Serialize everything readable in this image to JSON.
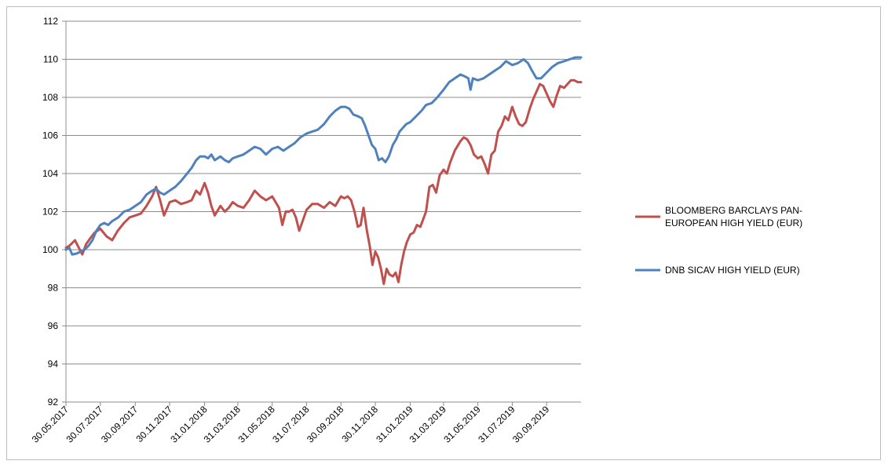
{
  "chart_data": {
    "type": "line",
    "title": "",
    "xlabel": "",
    "ylabel": "",
    "ylim": [
      92,
      112
    ],
    "y_ticks": [
      92,
      94,
      96,
      98,
      100,
      102,
      104,
      106,
      108,
      110,
      112
    ],
    "grid": true,
    "legend_position": "right",
    "x_tick_labels": [
      "30.05.2017",
      "30.07.2017",
      "30.09.2017",
      "30.11.2017",
      "31.01.2018",
      "31.03.2018",
      "31.05.2018",
      "31.07.2018",
      "30.09.2018",
      "30.11.2018",
      "31.01.2019",
      "31.03.2019",
      "31.05.2019",
      "31.07.2019",
      "30.09.2019"
    ],
    "x_tick_dates": [
      "2017-05-30",
      "2017-07-30",
      "2017-09-30",
      "2017-11-30",
      "2018-01-31",
      "2018-03-31",
      "2018-05-31",
      "2018-07-31",
      "2018-09-30",
      "2018-11-30",
      "2019-01-31",
      "2019-03-31",
      "2019-05-31",
      "2019-07-31",
      "2019-09-30"
    ],
    "x_range": [
      "2017-05-30",
      "2019-11-30"
    ],
    "series": [
      {
        "name": "BLOOMBERG BARCLAYS PAN-\nEUROPEAN HIGH YIELD (EUR)",
        "color": "#c0504d",
        "points": [
          [
            "2017-05-30",
            100.1
          ],
          [
            "2017-06-05",
            100.2
          ],
          [
            "2017-06-10",
            100.35
          ],
          [
            "2017-06-15",
            100.5
          ],
          [
            "2017-06-20",
            100.2
          ],
          [
            "2017-06-28",
            99.75
          ],
          [
            "2017-07-05",
            100.3
          ],
          [
            "2017-07-12",
            100.6
          ],
          [
            "2017-07-20",
            100.9
          ],
          [
            "2017-07-30",
            101.1
          ],
          [
            "2017-08-10",
            100.7
          ],
          [
            "2017-08-20",
            100.5
          ],
          [
            "2017-08-30",
            101.0
          ],
          [
            "2017-09-10",
            101.4
          ],
          [
            "2017-09-20",
            101.7
          ],
          [
            "2017-09-30",
            101.8
          ],
          [
            "2017-10-10",
            101.9
          ],
          [
            "2017-10-20",
            102.3
          ],
          [
            "2017-10-30",
            102.8
          ],
          [
            "2017-11-06",
            103.3
          ],
          [
            "2017-11-13",
            102.6
          ],
          [
            "2017-11-20",
            101.8
          ],
          [
            "2017-11-30",
            102.5
          ],
          [
            "2017-12-10",
            102.6
          ],
          [
            "2017-12-20",
            102.4
          ],
          [
            "2017-12-31",
            102.5
          ],
          [
            "2018-01-08",
            102.6
          ],
          [
            "2018-01-16",
            103.1
          ],
          [
            "2018-01-23",
            102.9
          ],
          [
            "2018-01-31",
            103.5
          ],
          [
            "2018-02-06",
            103.0
          ],
          [
            "2018-02-12",
            102.3
          ],
          [
            "2018-02-18",
            101.8
          ],
          [
            "2018-02-28",
            102.3
          ],
          [
            "2018-03-08",
            102.0
          ],
          [
            "2018-03-15",
            102.2
          ],
          [
            "2018-03-22",
            102.5
          ],
          [
            "2018-03-31",
            102.3
          ],
          [
            "2018-04-10",
            102.2
          ],
          [
            "2018-04-20",
            102.6
          ],
          [
            "2018-04-30",
            103.1
          ],
          [
            "2018-05-10",
            102.8
          ],
          [
            "2018-05-20",
            102.6
          ],
          [
            "2018-05-31",
            102.8
          ],
          [
            "2018-06-06",
            102.5
          ],
          [
            "2018-06-12",
            102.2
          ],
          [
            "2018-06-18",
            101.3
          ],
          [
            "2018-06-24",
            102.0
          ],
          [
            "2018-06-30",
            102.0
          ],
          [
            "2018-07-06",
            102.1
          ],
          [
            "2018-07-12",
            101.7
          ],
          [
            "2018-07-18",
            101.0
          ],
          [
            "2018-07-24",
            101.5
          ],
          [
            "2018-07-31",
            102.1
          ],
          [
            "2018-08-10",
            102.4
          ],
          [
            "2018-08-20",
            102.4
          ],
          [
            "2018-08-31",
            102.2
          ],
          [
            "2018-09-10",
            102.5
          ],
          [
            "2018-09-20",
            102.3
          ],
          [
            "2018-09-30",
            102.8
          ],
          [
            "2018-10-06",
            102.7
          ],
          [
            "2018-10-12",
            102.8
          ],
          [
            "2018-10-18",
            102.6
          ],
          [
            "2018-10-24",
            102.0
          ],
          [
            "2018-10-30",
            101.2
          ],
          [
            "2018-11-04",
            101.3
          ],
          [
            "2018-11-09",
            102.2
          ],
          [
            "2018-11-15",
            101.0
          ],
          [
            "2018-11-20",
            100.2
          ],
          [
            "2018-11-25",
            99.2
          ],
          [
            "2018-11-30",
            99.9
          ],
          [
            "2018-12-05",
            99.6
          ],
          [
            "2018-12-10",
            99.0
          ],
          [
            "2018-12-15",
            98.2
          ],
          [
            "2018-12-20",
            99.0
          ],
          [
            "2018-12-25",
            98.7
          ],
          [
            "2018-12-31",
            98.6
          ],
          [
            "2019-01-05",
            98.8
          ],
          [
            "2019-01-10",
            98.3
          ],
          [
            "2019-01-15",
            99.2
          ],
          [
            "2019-01-20",
            99.9
          ],
          [
            "2019-01-25",
            100.4
          ],
          [
            "2019-01-31",
            100.8
          ],
          [
            "2019-02-06",
            100.9
          ],
          [
            "2019-02-12",
            101.3
          ],
          [
            "2019-02-18",
            101.2
          ],
          [
            "2019-02-28",
            102.0
          ],
          [
            "2019-03-06",
            103.3
          ],
          [
            "2019-03-12",
            103.4
          ],
          [
            "2019-03-18",
            103.0
          ],
          [
            "2019-03-24",
            103.9
          ],
          [
            "2019-03-31",
            104.2
          ],
          [
            "2019-04-06",
            104.0
          ],
          [
            "2019-04-12",
            104.6
          ],
          [
            "2019-04-20",
            105.2
          ],
          [
            "2019-04-30",
            105.7
          ],
          [
            "2019-05-06",
            105.9
          ],
          [
            "2019-05-12",
            105.8
          ],
          [
            "2019-05-18",
            105.5
          ],
          [
            "2019-05-24",
            105.0
          ],
          [
            "2019-05-31",
            104.8
          ],
          [
            "2019-06-06",
            104.9
          ],
          [
            "2019-06-12",
            104.5
          ],
          [
            "2019-06-18",
            104.0
          ],
          [
            "2019-06-24",
            105.0
          ],
          [
            "2019-06-30",
            105.2
          ],
          [
            "2019-07-06",
            106.2
          ],
          [
            "2019-07-12",
            106.5
          ],
          [
            "2019-07-18",
            107.0
          ],
          [
            "2019-07-24",
            106.8
          ],
          [
            "2019-07-31",
            107.5
          ],
          [
            "2019-08-06",
            107.0
          ],
          [
            "2019-08-12",
            106.6
          ],
          [
            "2019-08-18",
            106.5
          ],
          [
            "2019-08-24",
            106.7
          ],
          [
            "2019-08-31",
            107.4
          ],
          [
            "2019-09-06",
            107.9
          ],
          [
            "2019-09-12",
            108.3
          ],
          [
            "2019-09-18",
            108.7
          ],
          [
            "2019-09-24",
            108.6
          ],
          [
            "2019-09-30",
            108.2
          ],
          [
            "2019-10-06",
            107.8
          ],
          [
            "2019-10-12",
            107.5
          ],
          [
            "2019-10-18",
            108.1
          ],
          [
            "2019-10-24",
            108.6
          ],
          [
            "2019-10-31",
            108.5
          ],
          [
            "2019-11-06",
            108.7
          ],
          [
            "2019-11-12",
            108.9
          ],
          [
            "2019-11-18",
            108.9
          ],
          [
            "2019-11-24",
            108.8
          ],
          [
            "2019-11-30",
            108.8
          ]
        ]
      },
      {
        "name": "DNB SICAV HIGH YIELD (EUR)",
        "color": "#4f81bd",
        "points": [
          [
            "2017-05-30",
            100.0
          ],
          [
            "2017-06-05",
            100.1
          ],
          [
            "2017-06-10",
            99.75
          ],
          [
            "2017-06-18",
            99.8
          ],
          [
            "2017-06-25",
            99.9
          ],
          [
            "2017-07-02",
            100.0
          ],
          [
            "2017-07-09",
            100.2
          ],
          [
            "2017-07-16",
            100.5
          ],
          [
            "2017-07-23",
            101.0
          ],
          [
            "2017-07-30",
            101.3
          ],
          [
            "2017-08-06",
            101.4
          ],
          [
            "2017-08-13",
            101.3
          ],
          [
            "2017-08-20",
            101.5
          ],
          [
            "2017-08-31",
            101.7
          ],
          [
            "2017-09-10",
            102.0
          ],
          [
            "2017-09-20",
            102.1
          ],
          [
            "2017-09-30",
            102.3
          ],
          [
            "2017-10-10",
            102.5
          ],
          [
            "2017-10-20",
            102.9
          ],
          [
            "2017-10-30",
            103.1
          ],
          [
            "2017-11-06",
            103.2
          ],
          [
            "2017-11-13",
            103.0
          ],
          [
            "2017-11-20",
            102.9
          ],
          [
            "2017-11-30",
            103.1
          ],
          [
            "2017-12-10",
            103.3
          ],
          [
            "2017-12-20",
            103.6
          ],
          [
            "2017-12-31",
            104.0
          ],
          [
            "2018-01-08",
            104.3
          ],
          [
            "2018-01-16",
            104.7
          ],
          [
            "2018-01-23",
            104.9
          ],
          [
            "2018-01-31",
            104.9
          ],
          [
            "2018-02-06",
            104.8
          ],
          [
            "2018-02-12",
            105.0
          ],
          [
            "2018-02-18",
            104.7
          ],
          [
            "2018-02-28",
            104.9
          ],
          [
            "2018-03-08",
            104.7
          ],
          [
            "2018-03-15",
            104.6
          ],
          [
            "2018-03-22",
            104.8
          ],
          [
            "2018-03-31",
            104.9
          ],
          [
            "2018-04-10",
            105.0
          ],
          [
            "2018-04-20",
            105.2
          ],
          [
            "2018-04-30",
            105.4
          ],
          [
            "2018-05-10",
            105.3
          ],
          [
            "2018-05-20",
            105.0
          ],
          [
            "2018-05-31",
            105.3
          ],
          [
            "2018-06-10",
            105.4
          ],
          [
            "2018-06-20",
            105.2
          ],
          [
            "2018-06-30",
            105.4
          ],
          [
            "2018-07-10",
            105.6
          ],
          [
            "2018-07-20",
            105.9
          ],
          [
            "2018-07-31",
            106.1
          ],
          [
            "2018-08-10",
            106.2
          ],
          [
            "2018-08-20",
            106.3
          ],
          [
            "2018-08-31",
            106.6
          ],
          [
            "2018-09-10",
            107.0
          ],
          [
            "2018-09-20",
            107.3
          ],
          [
            "2018-09-30",
            107.5
          ],
          [
            "2018-10-08",
            107.5
          ],
          [
            "2018-10-15",
            107.4
          ],
          [
            "2018-10-22",
            107.1
          ],
          [
            "2018-10-31",
            107.0
          ],
          [
            "2018-11-06",
            106.9
          ],
          [
            "2018-11-12",
            106.5
          ],
          [
            "2018-11-18",
            106.0
          ],
          [
            "2018-11-24",
            105.5
          ],
          [
            "2018-11-30",
            105.3
          ],
          [
            "2018-12-06",
            104.7
          ],
          [
            "2018-12-12",
            104.8
          ],
          [
            "2018-12-18",
            104.6
          ],
          [
            "2018-12-24",
            104.9
          ],
          [
            "2018-12-31",
            105.5
          ],
          [
            "2019-01-06",
            105.8
          ],
          [
            "2019-01-12",
            106.2
          ],
          [
            "2019-01-18",
            106.4
          ],
          [
            "2019-01-24",
            106.6
          ],
          [
            "2019-01-31",
            106.7
          ],
          [
            "2019-02-10",
            107.0
          ],
          [
            "2019-02-20",
            107.3
          ],
          [
            "2019-02-28",
            107.6
          ],
          [
            "2019-03-10",
            107.7
          ],
          [
            "2019-03-20",
            108.0
          ],
          [
            "2019-03-31",
            108.4
          ],
          [
            "2019-04-10",
            108.8
          ],
          [
            "2019-04-20",
            109.0
          ],
          [
            "2019-04-30",
            109.2
          ],
          [
            "2019-05-08",
            109.1
          ],
          [
            "2019-05-14",
            109.0
          ],
          [
            "2019-05-18",
            108.4
          ],
          [
            "2019-05-22",
            109.0
          ],
          [
            "2019-05-31",
            108.9
          ],
          [
            "2019-06-10",
            109.0
          ],
          [
            "2019-06-20",
            109.2
          ],
          [
            "2019-06-30",
            109.4
          ],
          [
            "2019-07-10",
            109.6
          ],
          [
            "2019-07-20",
            109.9
          ],
          [
            "2019-07-31",
            109.7
          ],
          [
            "2019-08-10",
            109.8
          ],
          [
            "2019-08-20",
            110.0
          ],
          [
            "2019-08-28",
            109.8
          ],
          [
            "2019-09-04",
            109.4
          ],
          [
            "2019-09-12",
            109.0
          ],
          [
            "2019-09-20",
            109.0
          ],
          [
            "2019-09-30",
            109.3
          ],
          [
            "2019-10-10",
            109.6
          ],
          [
            "2019-10-20",
            109.8
          ],
          [
            "2019-10-31",
            109.9
          ],
          [
            "2019-11-10",
            110.0
          ],
          [
            "2019-11-20",
            110.1
          ],
          [
            "2019-11-30",
            110.1
          ]
        ]
      }
    ]
  }
}
